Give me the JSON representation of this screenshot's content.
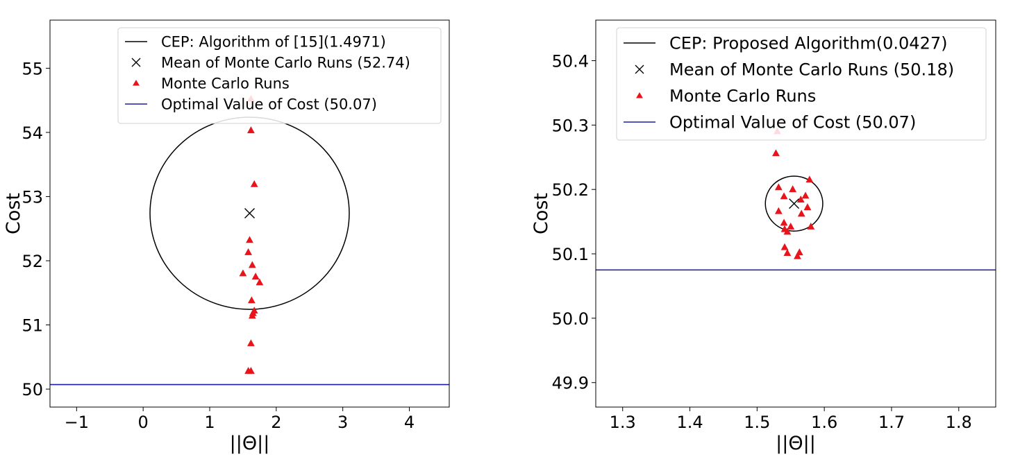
{
  "chart_data": [
    {
      "type": "scatter",
      "xlabel": "||Θ||",
      "ylabel": "Cost",
      "xlim": [
        -1.4,
        4.6
      ],
      "ylim": [
        49.72,
        55.75
      ],
      "xticks": [
        -1,
        0,
        1,
        2,
        3,
        4
      ],
      "xtick_labels": [
        "−1",
        "0",
        "1",
        "2",
        "3",
        "4"
      ],
      "yticks": [
        50,
        51,
        52,
        53,
        54,
        55
      ],
      "ytick_labels": [
        "50",
        "51",
        "52",
        "53",
        "54",
        "55"
      ],
      "grid": false,
      "legend_position": "top-right",
      "legend": [
        {
          "label": "CEP: Algorithm of [15](1.4971)",
          "marker": "line",
          "color": "#000000"
        },
        {
          "label": "Mean of Monte Carlo Runs (52.74)",
          "marker": "x",
          "color": "#000000"
        },
        {
          "label": "Monte Carlo Runs",
          "marker": "triangle",
          "color": "#e8141c"
        },
        {
          "label": "Optimal Value of Cost (50.07)",
          "marker": "line",
          "color": "#1a1aa6"
        }
      ],
      "cep_circle": {
        "center": [
          1.6,
          52.74
        ],
        "radius": 1.4971,
        "color": "#000000"
      },
      "mean": {
        "x": 1.6,
        "y": 52.74
      },
      "optimal_cost": 50.07,
      "runs": [
        {
          "x": 1.62,
          "y": 54.52
        },
        {
          "x": 1.62,
          "y": 54.03
        },
        {
          "x": 1.67,
          "y": 53.19
        },
        {
          "x": 1.6,
          "y": 52.32
        },
        {
          "x": 1.58,
          "y": 52.13
        },
        {
          "x": 1.64,
          "y": 51.93
        },
        {
          "x": 1.5,
          "y": 51.8
        },
        {
          "x": 1.69,
          "y": 51.75
        },
        {
          "x": 1.75,
          "y": 51.66
        },
        {
          "x": 1.63,
          "y": 51.38
        },
        {
          "x": 1.67,
          "y": 51.22
        },
        {
          "x": 1.65,
          "y": 51.18
        },
        {
          "x": 1.64,
          "y": 51.14
        },
        {
          "x": 1.62,
          "y": 50.71
        },
        {
          "x": 1.58,
          "y": 50.28
        },
        {
          "x": 1.62,
          "y": 50.28
        }
      ],
      "colors": {
        "runs": "#e8141c",
        "optimal": "#1a1aa6",
        "circle": "#000000",
        "mean": "#000000"
      }
    },
    {
      "type": "scatter",
      "xlabel": "||Θ||",
      "ylabel": "Cost",
      "xlim": [
        1.26,
        1.855
      ],
      "ylim": [
        49.862,
        50.463
      ],
      "xticks": [
        1.3,
        1.4,
        1.5,
        1.6,
        1.7,
        1.8
      ],
      "xtick_labels": [
        "1.3",
        "1.4",
        "1.5",
        "1.6",
        "1.7",
        "1.8"
      ],
      "yticks": [
        49.9,
        50.0,
        50.1,
        50.2,
        50.3,
        50.4
      ],
      "ytick_labels": [
        "49.9",
        "50.0",
        "50.1",
        "50.2",
        "50.3",
        "50.4"
      ],
      "grid": false,
      "legend_position": "top-right",
      "legend": [
        {
          "label": "CEP: Proposed Algorithm(0.0427)",
          "marker": "line",
          "color": "#000000"
        },
        {
          "label": "Mean of Monte Carlo Runs (50.18)",
          "marker": "x",
          "color": "#000000"
        },
        {
          "label": "Monte Carlo Runs",
          "marker": "triangle",
          "color": "#e8141c"
        },
        {
          "label": "Optimal Value of Cost (50.07)",
          "marker": "line",
          "color": "#1a1aa6"
        }
      ],
      "cep_circle": {
        "center": [
          1.555,
          50.178
        ],
        "radius": 0.0427,
        "color": "#000000"
      },
      "mean": {
        "x": 1.555,
        "y": 50.178
      },
      "optimal_cost": 50.075,
      "runs": [
        {
          "x": 1.53,
          "y": 50.29
        },
        {
          "x": 1.528,
          "y": 50.256
        },
        {
          "x": 1.578,
          "y": 50.215
        },
        {
          "x": 1.532,
          "y": 50.203
        },
        {
          "x": 1.553,
          "y": 50.2
        },
        {
          "x": 1.572,
          "y": 50.19
        },
        {
          "x": 1.54,
          "y": 50.189
        },
        {
          "x": 1.565,
          "y": 50.184
        },
        {
          "x": 1.575,
          "y": 50.172
        },
        {
          "x": 1.532,
          "y": 50.166
        },
        {
          "x": 1.566,
          "y": 50.162
        },
        {
          "x": 1.54,
          "y": 50.148
        },
        {
          "x": 1.55,
          "y": 50.142
        },
        {
          "x": 1.58,
          "y": 50.142
        },
        {
          "x": 1.541,
          "y": 50.138
        },
        {
          "x": 1.545,
          "y": 50.134
        },
        {
          "x": 1.541,
          "y": 50.11
        },
        {
          "x": 1.545,
          "y": 50.101
        },
        {
          "x": 1.563,
          "y": 50.102
        },
        {
          "x": 1.56,
          "y": 50.096
        }
      ],
      "colors": {
        "runs": "#e8141c",
        "optimal": "#1a1aa6",
        "circle": "#000000",
        "mean": "#000000"
      }
    }
  ]
}
